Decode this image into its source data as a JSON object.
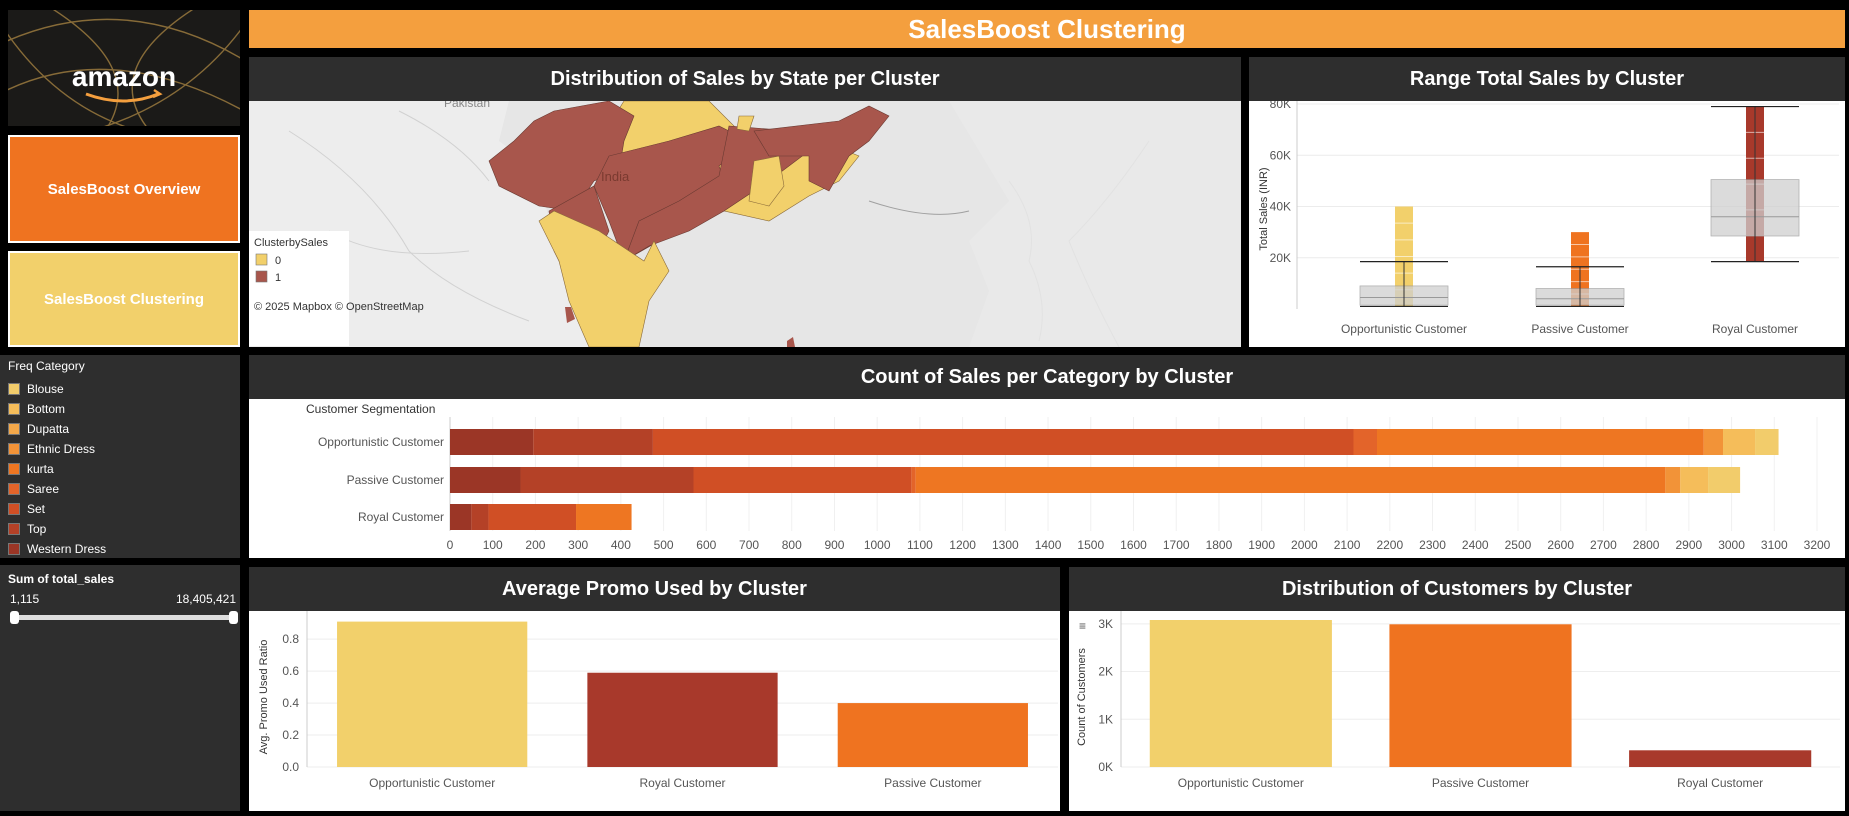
{
  "dashboard": {
    "title": "SalesBoost Clustering",
    "logo_text": "amazon",
    "colors": {
      "title_bar": "#f49f3e",
      "panel_header": "#2e2e2e",
      "nav_active": "#ef7320",
      "nav_current": "#f2d06b",
      "cluster0": "#f2d06b",
      "cluster1": "#a8564c"
    }
  },
  "nav": {
    "overview_label": "SalesBoost Overview",
    "clustering_label": "SalesBoost Clustering"
  },
  "freq_legend": {
    "title": "Freq Category",
    "items": [
      {
        "label": "Blouse",
        "color": "#f2cc6b"
      },
      {
        "label": "Bottom",
        "color": "#f5bd5a"
      },
      {
        "label": "Dupatta",
        "color": "#f3a84a"
      },
      {
        "label": "Ethnic Dress",
        "color": "#f29338"
      },
      {
        "label": "kurta",
        "color": "#ee7622"
      },
      {
        "label": "Saree",
        "color": "#e3642a"
      },
      {
        "label": "Set",
        "color": "#d04f25"
      },
      {
        "label": "Top",
        "color": "#b44127"
      },
      {
        "label": "Western Dress",
        "color": "#9b3626"
      }
    ]
  },
  "filter": {
    "title": "Sum of total_sales",
    "min_label": "1,115",
    "max_label": "18,405,421",
    "range_fraction": [
      0,
      1
    ]
  },
  "map_panel": {
    "title": "Distribution of Sales by State per Cluster",
    "legend_title": "ClusterbySales",
    "legend_items": [
      {
        "label": "0",
        "color": "#f2d06b"
      },
      {
        "label": "1",
        "color": "#a8564c"
      }
    ],
    "labels": {
      "pakistan": "Pakistan",
      "india": "India"
    },
    "attribution": "© 2025 Mapbox  © OpenStreetMap"
  },
  "chart_data": [
    {
      "type": "box",
      "title": "Range Total Sales by Cluster",
      "ylabel": "Total Sales (INR)",
      "yticks": [
        "20K",
        "40K",
        "60K",
        "80K"
      ],
      "ylim": [
        0,
        80000
      ],
      "categories": [
        "Opportunistic Customer",
        "Passive Customer",
        "Royal Customer"
      ],
      "series_colors": [
        "#f2d06b",
        "#ef7320",
        "#a8392b"
      ],
      "boxes": [
        {
          "whisker_low": 1000,
          "q1": 1500,
          "median": 4500,
          "q3": 9000,
          "whisker_high": 18500,
          "points_max": 40000
        },
        {
          "whisker_low": 1000,
          "q1": 1500,
          "median": 4000,
          "q3": 8000,
          "whisker_high": 16500,
          "points_max": 30000
        },
        {
          "whisker_low": 18500,
          "q1": 28500,
          "median": 36000,
          "q3": 50500,
          "whisker_high": 79000,
          "points_max": 79000
        }
      ]
    },
    {
      "type": "bar",
      "orientation": "horizontal-stacked",
      "title": "Count of Sales per Category by Cluster",
      "row_header": "Customer Segmentation",
      "categories": [
        "Opportunistic Customer",
        "Passive Customer",
        "Royal Customer"
      ],
      "xlim": [
        0,
        3200
      ],
      "xticks": [
        "0",
        "100",
        "200",
        "300",
        "400",
        "500",
        "600",
        "700",
        "800",
        "900",
        "1000",
        "1100",
        "1200",
        "1300",
        "1400",
        "1500",
        "1600",
        "1700",
        "1800",
        "1900",
        "2000",
        "2100",
        "2200",
        "2300",
        "2400",
        "2500",
        "2600",
        "2700",
        "2800",
        "2900",
        "3000",
        "3100",
        "3200"
      ],
      "series": [
        {
          "name": "Western Dress",
          "color": "#9b3626",
          "values": [
            195,
            165,
            50
          ]
        },
        {
          "name": "Top",
          "color": "#b44127",
          "values": [
            280,
            405,
            40
          ]
        },
        {
          "name": "Set",
          "color": "#d04f25",
          "values": [
            1640,
            510,
            205
          ]
        },
        {
          "name": "Saree",
          "color": "#e3642a",
          "values": [
            55,
            10,
            0
          ]
        },
        {
          "name": "kurta",
          "color": "#ee7622",
          "values": [
            765,
            1755,
            130
          ]
        },
        {
          "name": "Ethnic Dress",
          "color": "#f29338",
          "values": [
            45,
            35,
            0
          ]
        },
        {
          "name": "Dupatta",
          "color": "#f3a84a",
          "values": [
            0,
            0,
            0
          ]
        },
        {
          "name": "Bottom",
          "color": "#f5bd5a",
          "values": [
            75,
            65,
            0
          ]
        },
        {
          "name": "Blouse",
          "color": "#f2cc6b",
          "values": [
            55,
            75,
            0
          ]
        }
      ]
    },
    {
      "type": "bar",
      "title": "Average Promo Used by Cluster",
      "ylabel": "Avg. Promo Used Ratio",
      "yticks": [
        "0.0",
        "0.2",
        "0.4",
        "0.6",
        "0.8"
      ],
      "ylim": [
        0,
        0.92
      ],
      "categories": [
        "Opportunistic Customer",
        "Royal Customer",
        "Passive Customer"
      ],
      "values": [
        0.91,
        0.59,
        0.4
      ],
      "colors": [
        "#f2d06b",
        "#a8392b",
        "#ef7320"
      ]
    },
    {
      "type": "bar",
      "title": "Distribution of Customers by Cluster",
      "ylabel": "Count of Customers",
      "yticks": [
        "0K",
        "1K",
        "2K",
        "3K"
      ],
      "ylim": [
        0,
        3080
      ],
      "categories": [
        "Opportunistic Customer",
        "Passive Customer",
        "Royal Customer"
      ],
      "values": [
        3080,
        2990,
        350
      ],
      "colors": [
        "#f2d06b",
        "#ef7320",
        "#a8392b"
      ]
    }
  ]
}
